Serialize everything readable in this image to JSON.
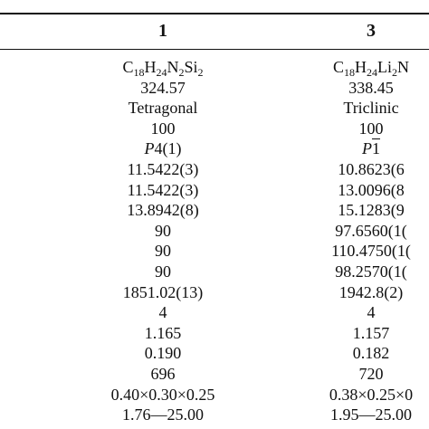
{
  "header": {
    "col1": "1",
    "col3": "3"
  },
  "col1": {
    "formula": {
      "p1": "C",
      "s1": "18",
      "p2": "H",
      "s2": "24",
      "p3": "N",
      "s3": "2",
      "p4": "Si",
      "s4": "2"
    },
    "rows": [
      "324.57",
      "Tetragonal",
      "100"
    ],
    "space_group": {
      "italic": "P",
      "rest": "4(1)"
    },
    "rows2": [
      "11.5422(3)",
      "11.5422(3)",
      "13.8942(8)",
      "90",
      "90",
      "90",
      "1851.02(13)",
      "4",
      "1.165",
      "0.190",
      "696",
      "0.40×0.30×0.25",
      "1.76—25.00"
    ]
  },
  "col3": {
    "formula": {
      "p1": "C",
      "s1": "18",
      "p2": "H",
      "s2": "24",
      "p3": "Li",
      "s3": "2",
      "p4": "N"
    },
    "rows": [
      "338.45",
      "Triclinic",
      "100"
    ],
    "space_group": {
      "italic": "P",
      "bar": "1"
    },
    "rows2": [
      "10.8623(6",
      "13.0096(8",
      "15.1283(9",
      "97.6560(1(",
      "110.4750(1(",
      "98.2570(1(",
      "1942.8(2)",
      "4",
      "1.157",
      "0.182",
      "720",
      "0.38×0.25×0",
      "1.95—25.00"
    ]
  }
}
